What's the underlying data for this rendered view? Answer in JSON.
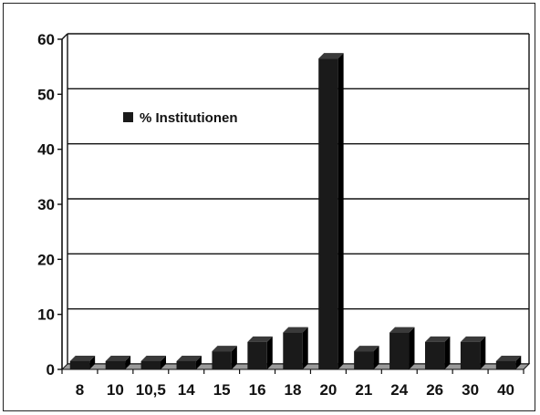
{
  "chart_data": {
    "type": "bar",
    "categories": [
      "8",
      "10",
      "10,5",
      "14",
      "15",
      "16",
      "18",
      "20",
      "21",
      "24",
      "26",
      "30",
      "40"
    ],
    "series": [
      {
        "name": "% Institutionen",
        "values": [
          1.5,
          1.5,
          1.5,
          1.5,
          3.3,
          5.0,
          6.7,
          56.5,
          3.3,
          6.7,
          5.0,
          5.0,
          1.5
        ]
      }
    ],
    "ylim": [
      0,
      60
    ],
    "yticks": [
      "0",
      "10",
      "20",
      "30",
      "40",
      "50",
      "60"
    ],
    "grid": true,
    "legend": "top-left",
    "colors": {
      "bar": "#1a1a1a",
      "bar_top": "#3a3a3a",
      "floor": "#9a9a9a",
      "grid": "#111111"
    }
  }
}
